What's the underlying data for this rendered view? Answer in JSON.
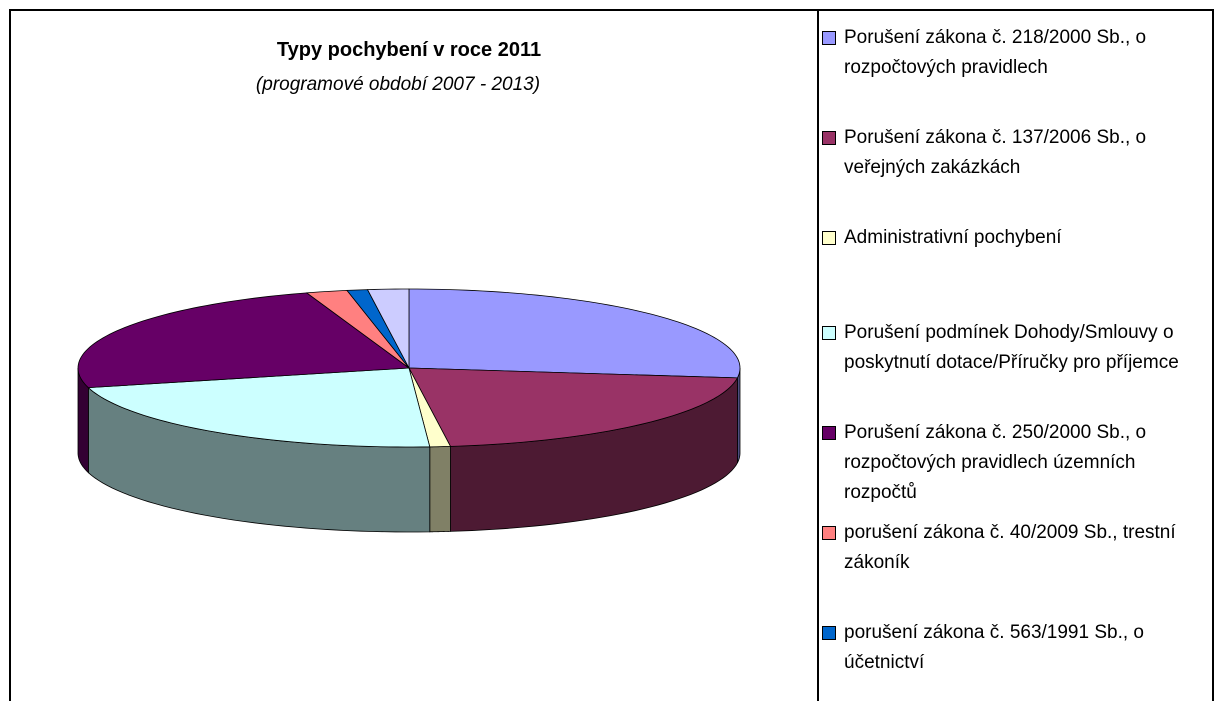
{
  "chart_data": {
    "type": "pie3d",
    "title": "Typy pochybení v roce 2011",
    "subtitle": "(programové období 2007 - 2013)",
    "categories": [
      "Porušení zákona č. 218/2000 Sb., o rozpočtových pravidlech",
      "Porušení zákona č. 137/2006 Sb., o veřejných zakázkách",
      "Administrativní pochybení",
      "Porušení podmínek Dohody/Smlouvy o poskytnutí dotace/Příručky pro příjemce",
      "Porušení zákona č. 250/2000 Sb., o rozpočtových pravidlech územních rozpočtů",
      "porušení zákona č. 40/2009 Sb., trestní zákoník",
      "porušení zákona č. 563/1991 Sb., o účetnictví",
      null
    ],
    "values": [
      27,
      21,
      1,
      22,
      24,
      2,
      1,
      2
    ],
    "colors": [
      "#9999ff",
      "#993366",
      "#ffffcc",
      "#ccffff",
      "#660066",
      "#ff8080",
      "#0066cc",
      "#ccccff"
    ],
    "legend": "right"
  }
}
